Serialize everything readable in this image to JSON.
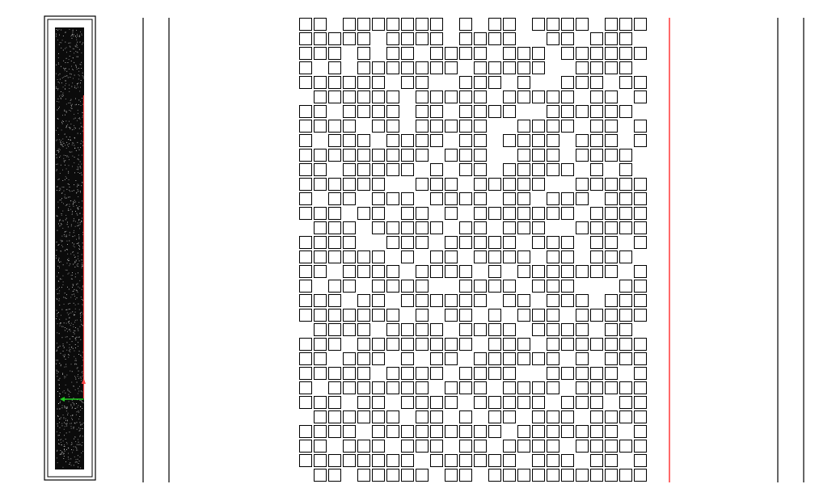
{
  "diagram": {
    "background": "#ffffff",
    "stroke_color": "#000000",
    "accent_red": "#ff4444",
    "accent_green": "#22cc22",
    "preview_fill": "#0b0b0b",
    "grid_pattern_rows": [
      "110111111101011011110111",
      "111110111101111001101110",
      "111010110111101110111111",
      "101011111110111110011110",
      "111111011001110100111011",
      "011111101111101111101101",
      "110111101101111001111110",
      "111101101111100111101101",
      "101110111101101111011101",
      "111111111011100111011110",
      "110111110101101111101010",
      "111111001110111110011111",
      "101101110111101101110111",
      "111011011010111111101111",
      "011101111101101110011111",
      "111100111011111011101101",
      "111111010110111101101110",
      "110111101111010111111101",
      "101101111001111011100011",
      "111011011111101101110111",
      "111111101011010111011111",
      "011110111101111011110110",
      "111011111111011101111111",
      "110111010110111111010111",
      "111110111101111001111101",
      "101111111011101111011111",
      "111011011110111110111011",
      "011111101101011011101111",
      "111101111111110111111101",
      "110111011101101111011111",
      "111111110111111011101101",
      "011011111011011111111111"
    ]
  }
}
